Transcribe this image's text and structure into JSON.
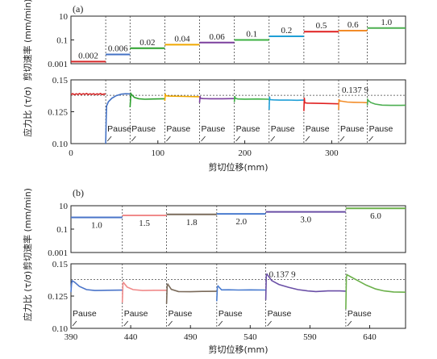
{
  "chart_data": [
    {
      "type": "line",
      "panel": "(a)",
      "xlabel": "剪切位移(mm)",
      "xlim": [
        0,
        385
      ],
      "xticks": [
        0,
        100,
        200,
        300
      ],
      "top": {
        "ylabel": "剪切速率 (mm/min)",
        "yscale": "log",
        "ylim": [
          0.001,
          10
        ],
        "yticks": [
          {
            "v": 0.001,
            "label": "0.001"
          },
          {
            "v": 0.1,
            "label": "0.1"
          },
          {
            "v": 10,
            "label": "10"
          }
        ],
        "segments": [
          {
            "x0": 0,
            "x1": 40,
            "rate": 0.0015,
            "label": "0.002",
            "color": "#d62728"
          },
          {
            "x0": 40,
            "x1": 68,
            "rate": 0.006,
            "label": "0.006",
            "color": "#4472c4"
          },
          {
            "x0": 68,
            "x1": 108,
            "rate": 0.02,
            "label": "0.02",
            "color": "#2ca02c"
          },
          {
            "x0": 108,
            "x1": 148,
            "rate": 0.04,
            "label": "0.04",
            "color": "#f0a800"
          },
          {
            "x0": 148,
            "x1": 188,
            "rate": 0.06,
            "label": "0.06",
            "color": "#7b3f9e"
          },
          {
            "x0": 188,
            "x1": 228,
            "rate": 0.1,
            "label": "0.1",
            "color": "#3cb043"
          },
          {
            "x0": 228,
            "x1": 268,
            "rate": 0.2,
            "label": "0.2",
            "color": "#1f9fd6"
          },
          {
            "x0": 268,
            "x1": 308,
            "rate": 0.5,
            "label": "0.5",
            "color": "#e02020"
          },
          {
            "x0": 308,
            "x1": 341,
            "rate": 0.6,
            "label": "0.6",
            "color": "#f28c28"
          },
          {
            "x0": 341,
            "x1": 385,
            "rate": 1.0,
            "label": "1.0",
            "color": "#4caf50"
          }
        ]
      },
      "bottom": {
        "ylabel": "应力比 (τ/σ)",
        "ylim": [
          0.1,
          0.15
        ],
        "yticks": [
          {
            "v": 0.1,
            "label": "0.10"
          },
          {
            "v": 0.125,
            "label": "0.125"
          },
          {
            "v": 0.15,
            "label": "0.15"
          }
        ],
        "reference_line": 0.1379,
        "reference_label": "0.137 9",
        "pause_label": "Pause",
        "series": [
          {
            "name": "0.002",
            "color": "#d62728",
            "x": [
              0,
              2,
              4,
              6,
              8,
              10,
              12,
              14,
              16,
              18,
              20,
              22,
              24,
              26,
              28,
              30,
              32,
              34,
              36,
              38,
              40
            ],
            "y": [
              0.1385,
              0.1392,
              0.1383,
              0.1391,
              0.1386,
              0.1393,
              0.1384,
              0.1392,
              0.1387,
              0.1393,
              0.1385,
              0.1391,
              0.1386,
              0.1392,
              0.1384,
              0.1391,
              0.1386,
              0.1393,
              0.1385,
              0.139,
              0.1388
            ]
          },
          {
            "name": "0.006",
            "color": "#4472c4",
            "x": [
              40,
              40.5,
              41,
              43,
              47,
              52,
              58,
              63,
              68
            ],
            "y": [
              0.1,
              0.119,
              0.1295,
              0.1328,
              0.1356,
              0.1376,
              0.1388,
              0.1391,
              0.139
            ]
          },
          {
            "name": "0.02",
            "color": "#2ca02c",
            "x": [
              68,
              69,
              70,
              73,
              78,
              85,
              95,
              108
            ],
            "y": [
              0.1285,
              0.1392,
              0.1382,
              0.1362,
              0.1352,
              0.1348,
              0.135,
              0.1352
            ]
          },
          {
            "name": "0.04",
            "color": "#f0a800",
            "x": [
              108,
              108.5,
              109,
              112,
              118,
              130,
              148
            ],
            "y": [
              0.1335,
              0.1392,
              0.1375,
              0.1373,
              0.1372,
              0.137,
              0.1368
            ]
          },
          {
            "name": "0.06",
            "color": "#7b3f9e",
            "x": [
              148,
              148.5,
              149,
              152,
              160,
              175,
              188
            ],
            "y": [
              0.132,
              0.1373,
              0.1355,
              0.1353,
              0.1352,
              0.1352,
              0.1353
            ]
          },
          {
            "name": "0.1",
            "color": "#3cb043",
            "x": [
              188,
              188.5,
              189,
              192,
              200,
              215,
              228
            ],
            "y": [
              0.1325,
              0.1372,
              0.1355,
              0.135,
              0.1349,
              0.135,
              0.1348
            ]
          },
          {
            "name": "0.2",
            "color": "#1f9fd6",
            "x": [
              228,
              228.5,
              229,
              233,
              240,
              250,
              260,
              268
            ],
            "y": [
              0.1265,
              0.1368,
              0.1345,
              0.1343,
              0.1341,
              0.1342,
              0.134,
              0.1341
            ]
          },
          {
            "name": "0.5",
            "color": "#e02020",
            "x": [
              268,
              268.5,
              269,
              272,
              278,
              290,
              308
            ],
            "y": [
              0.1255,
              0.136,
              0.132,
              0.1318,
              0.1317,
              0.1315,
              0.1312
            ]
          },
          {
            "name": "0.6",
            "color": "#f28c28",
            "x": [
              308,
              308.5,
              309,
              312,
              318,
              325,
              335,
              341
            ],
            "y": [
              0.1265,
              0.1348,
              0.1335,
              0.1332,
              0.1326,
              0.1324,
              0.1323,
              0.1321
            ]
          },
          {
            "name": "1.0",
            "color": "#4caf50",
            "x": [
              341,
              341.5,
              342,
              345,
              350,
              358,
              368,
              380,
              385
            ],
            "y": [
              0.13,
              0.1345,
              0.134,
              0.1322,
              0.131,
              0.1302,
              0.13,
              0.13,
              0.1301
            ]
          }
        ]
      }
    },
    {
      "type": "line",
      "panel": "(b)",
      "xlabel": "剪切位移(mm)",
      "xlim": [
        390,
        670
      ],
      "xticks": [
        390,
        440,
        490,
        540,
        590,
        640
      ],
      "top": {
        "ylabel": "剪切速率 (mm/min)",
        "yscale": "log",
        "ylim": [
          0.001,
          10
        ],
        "yticks": [
          {
            "v": 0.001,
            "label": "0.001"
          },
          {
            "v": 0.1,
            "label": "0.1"
          },
          {
            "v": 10,
            "label": "10"
          }
        ],
        "segments": [
          {
            "x0": 390,
            "x1": 433,
            "rate": 1.0,
            "label": "1.0",
            "color": "#4a74c9"
          },
          {
            "x0": 433,
            "x1": 470,
            "rate": 1.5,
            "label": "1.5",
            "color": "#f08a8a"
          },
          {
            "x0": 470,
            "x1": 512,
            "rate": 1.8,
            "label": "1.8",
            "color": "#7a6a5a"
          },
          {
            "x0": 512,
            "x1": 553,
            "rate": 2.0,
            "label": "2.0",
            "color": "#4a7ccf"
          },
          {
            "x0": 553,
            "x1": 620,
            "rate": 3.0,
            "label": "3.0",
            "color": "#6a4fa6"
          },
          {
            "x0": 620,
            "x1": 670,
            "rate": 6.0,
            "label": "6.0",
            "color": "#6bb04a"
          }
        ]
      },
      "bottom": {
        "ylabel": "应力比 (τ/σ)",
        "ylim": [
          0.1,
          0.15
        ],
        "yticks": [
          {
            "v": 0.1,
            "label": "0.10"
          },
          {
            "v": 0.125,
            "label": "0.125"
          },
          {
            "v": 0.15,
            "label": "0.15"
          }
        ],
        "reference_line": 0.1379,
        "reference_label": "0.137 9",
        "pause_label": "Pause",
        "series": [
          {
            "name": "1.0",
            "color": "#4a74c9",
            "x": [
              390,
              390.5,
              391,
              393,
              397,
              403,
              410,
              420,
              433
            ],
            "y": [
              0.128,
              0.1345,
              0.1368,
              0.1358,
              0.1325,
              0.13,
              0.1293,
              0.1295,
              0.1296
            ]
          },
          {
            "name": "1.5",
            "color": "#f08a8a",
            "x": [
              433,
              433.5,
              434,
              437,
              442,
              450,
              460,
              470
            ],
            "y": [
              0.12,
              0.135,
              0.1355,
              0.132,
              0.13,
              0.1293,
              0.1295,
              0.1295
            ]
          },
          {
            "name": "1.8",
            "color": "#7a6a5a",
            "x": [
              470,
              470.5,
              471,
              474,
              480,
              490,
              500,
              512
            ],
            "y": [
              0.119,
              0.133,
              0.1342,
              0.1302,
              0.1285,
              0.1284,
              0.1286,
              0.1287
            ]
          },
          {
            "name": "2.0",
            "color": "#4a7ccf",
            "x": [
              512,
              512.5,
              513,
              516,
              522,
              530,
              540,
              553
            ],
            "y": [
              0.121,
              0.132,
              0.1328,
              0.1298,
              0.1299,
              0.1297,
              0.1298,
              0.1297
            ]
          },
          {
            "name": "3.0",
            "color": "#6a4fa6",
            "x": [
              553,
              553.5,
              554,
              558,
              564,
              572,
              580,
              588,
              595,
              605,
              615,
              620
            ],
            "y": [
              0.122,
              0.141,
              0.142,
              0.137,
              0.134,
              0.1318,
              0.13,
              0.129,
              0.1285,
              0.129,
              0.129,
              0.1288
            ]
          },
          {
            "name": "6.0",
            "color": "#6bb04a",
            "x": [
              620,
              620.5,
              621,
              624,
              630,
              637,
              645,
              652,
              660,
              670
            ],
            "y": [
              0.115,
              0.1395,
              0.1415,
              0.14,
              0.137,
              0.1335,
              0.1305,
              0.129,
              0.1282,
              0.128
            ]
          }
        ]
      }
    }
  ],
  "panel_labels": [
    "(a)",
    "(b)"
  ]
}
